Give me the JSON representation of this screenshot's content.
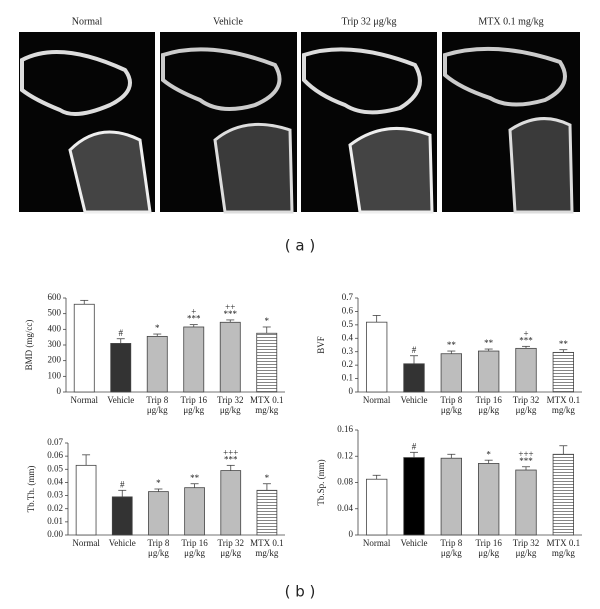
{
  "images": [
    "Normal",
    "Vehicle",
    "Trip 32 μg/kg",
    "MTX 0.1 mg/kg"
  ],
  "panel_labels": [
    "( a )",
    "( b )"
  ],
  "chart_data": [
    {
      "type": "bar",
      "y_label": "BMD (mg/cc)",
      "categories": [
        [
          "Normal"
        ],
        [
          "Vehicle"
        ],
        [
          "Trip 8",
          "μg/kg"
        ],
        [
          "Trip 16",
          "μg/kg"
        ],
        [
          "Trip 32",
          "μg/kg"
        ],
        [
          "MTX 0.1",
          "mg/kg"
        ]
      ],
      "values": [
        560,
        310,
        355,
        415,
        445,
        375
      ],
      "errors": [
        25,
        30,
        15,
        15,
        15,
        40
      ],
      "annotations": [
        null,
        [
          "#"
        ],
        [
          "*"
        ],
        [
          "+",
          "***"
        ],
        [
          "++",
          "***"
        ],
        [
          "*"
        ]
      ],
      "colors": [
        "#ffffff",
        "#333333",
        "#bdbdbd",
        "#bdbdbd",
        "#bdbdbd",
        "#ffffff"
      ],
      "patterns": [
        "solid",
        "solid",
        "solid",
        "solid",
        "solid",
        "horizontal-lines"
      ],
      "ylim": [
        0,
        600
      ],
      "yticks": [
        0,
        100,
        200,
        300,
        400,
        500,
        600
      ]
    },
    {
      "type": "bar",
      "y_label": "BVF",
      "categories": [
        [
          "Normal"
        ],
        [
          "Vehicle"
        ],
        [
          "Trip 8",
          "μg/kg"
        ],
        [
          "Trip 16",
          "μg/kg"
        ],
        [
          "Trip 32",
          "μg/kg"
        ],
        [
          "MTX 0.1",
          "mg/kg"
        ]
      ],
      "values": [
        0.52,
        0.21,
        0.285,
        0.305,
        0.325,
        0.295
      ],
      "errors": [
        0.05,
        0.06,
        0.02,
        0.015,
        0.015,
        0.02
      ],
      "annotations": [
        null,
        [
          "#"
        ],
        [
          "**"
        ],
        [
          "**"
        ],
        [
          "+",
          "***"
        ],
        [
          "**"
        ]
      ],
      "colors": [
        "#ffffff",
        "#333333",
        "#bdbdbd",
        "#bdbdbd",
        "#bdbdbd",
        "#ffffff"
      ],
      "patterns": [
        "solid",
        "solid",
        "solid",
        "solid",
        "solid",
        "horizontal-lines"
      ],
      "ylim": [
        0,
        0.7
      ],
      "yticks": [
        0,
        0.1,
        0.2,
        0.3,
        0.4,
        0.5,
        0.6,
        0.7
      ]
    },
    {
      "type": "bar",
      "y_label": "Tb.Th. (mm)",
      "categories": [
        [
          "Normal"
        ],
        [
          "Vehicle"
        ],
        [
          "Trip 8",
          "μg/kg"
        ],
        [
          "Trip 16",
          "μg/kg"
        ],
        [
          "Trip 32",
          "μg/kg"
        ],
        [
          "MTX 0.1",
          "mg/kg"
        ]
      ],
      "values": [
        0.053,
        0.029,
        0.033,
        0.036,
        0.049,
        0.034
      ],
      "errors": [
        0.008,
        0.005,
        0.002,
        0.003,
        0.004,
        0.005
      ],
      "annotations": [
        null,
        [
          "#"
        ],
        [
          "*"
        ],
        [
          "**"
        ],
        [
          "+++",
          "***"
        ],
        [
          "*"
        ]
      ],
      "colors": [
        "#ffffff",
        "#333333",
        "#bdbdbd",
        "#bdbdbd",
        "#bdbdbd",
        "#ffffff"
      ],
      "patterns": [
        "solid",
        "solid",
        "solid",
        "solid",
        "solid",
        "horizontal-lines"
      ],
      "ylim": [
        0,
        0.07
      ],
      "yticks": [
        {
          "value": 0,
          "label": "0.00"
        },
        0.01,
        0.02,
        0.03,
        0.04,
        0.05,
        0.06,
        0.07
      ]
    },
    {
      "type": "bar",
      "y_label": "Tb.Sp. (mm)",
      "categories": [
        [
          "Normal"
        ],
        [
          "Vehicle"
        ],
        [
          "Trip 8",
          "μg/kg"
        ],
        [
          "Trip 16",
          "μg/kg"
        ],
        [
          "Trip 32",
          "μg/kg"
        ],
        [
          "MTX 0.1",
          "mg/kg"
        ]
      ],
      "values": [
        0.085,
        0.118,
        0.117,
        0.109,
        0.099,
        0.123
      ],
      "errors": [
        0.006,
        0.008,
        0.006,
        0.005,
        0.005,
        0.013
      ],
      "annotations": [
        null,
        [
          "#"
        ],
        null,
        [
          "*"
        ],
        [
          "+++",
          "***"
        ],
        null
      ],
      "colors": [
        "#ffffff",
        "#000000",
        "#bdbdbd",
        "#bdbdbd",
        "#bdbdbd",
        "#d0d0d0"
      ],
      "patterns": [
        "solid",
        "solid",
        "solid",
        "solid",
        "solid",
        "horizontal-lines"
      ],
      "ylim": [
        0,
        0.16
      ],
      "yticks": [
        0,
        0.04,
        0.08,
        0.12,
        0.16
      ]
    }
  ]
}
